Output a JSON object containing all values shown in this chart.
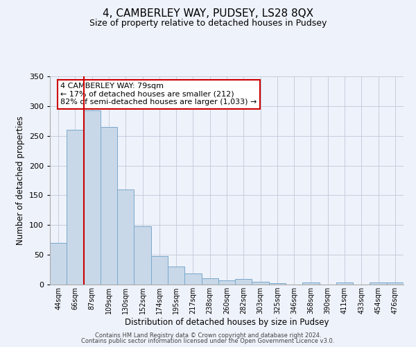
{
  "title": "4, CAMBERLEY WAY, PUDSEY, LS28 8QX",
  "subtitle": "Size of property relative to detached houses in Pudsey",
  "xlabel": "Distribution of detached houses by size in Pudsey",
  "ylabel": "Number of detached properties",
  "bar_labels": [
    "44sqm",
    "66sqm",
    "87sqm",
    "109sqm",
    "130sqm",
    "152sqm",
    "174sqm",
    "195sqm",
    "217sqm",
    "238sqm",
    "260sqm",
    "282sqm",
    "303sqm",
    "325sqm",
    "346sqm",
    "368sqm",
    "390sqm",
    "411sqm",
    "433sqm",
    "454sqm",
    "476sqm"
  ],
  "bar_values": [
    70,
    260,
    293,
    265,
    160,
    98,
    48,
    30,
    19,
    10,
    7,
    9,
    5,
    2,
    0,
    4,
    0,
    3,
    0,
    3,
    3
  ],
  "bar_color": "#c8d8e8",
  "bar_edge_color": "#7aa8cc",
  "ylim": [
    0,
    350
  ],
  "yticks": [
    0,
    50,
    100,
    150,
    200,
    250,
    300,
    350
  ],
  "vline_color": "#cc0000",
  "vline_x_index": 1.5,
  "annotation_title": "4 CAMBERLEY WAY: 79sqm",
  "annotation_line1": "← 17% of detached houses are smaller (212)",
  "annotation_line2": "82% of semi-detached houses are larger (1,033) →",
  "annotation_box_color": "#ffffff",
  "annotation_box_edge": "#cc0000",
  "bg_color": "#eef2fa",
  "grid_color": "#c0c8d8",
  "footer1": "Contains HM Land Registry data © Crown copyright and database right 2024.",
  "footer2": "Contains public sector information licensed under the Open Government Licence v3.0."
}
